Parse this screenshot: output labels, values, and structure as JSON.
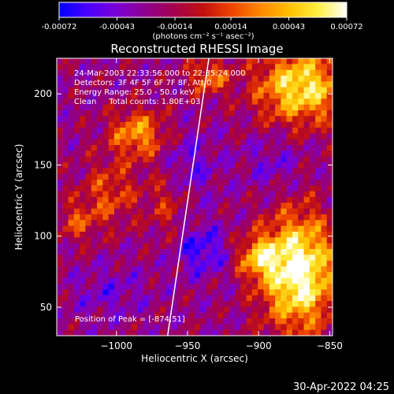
{
  "chart_data": {
    "type": "heatmap",
    "title": "Reconstructed RHESSI Image",
    "xlabel": "Heliocentric X (arcsec)",
    "ylabel": "Heliocentric Y (arcsec)",
    "xlim": [
      -1042,
      -848
    ],
    "ylim": [
      30,
      225
    ],
    "x_ticks": [
      -1000,
      -950,
      -900,
      -850
    ],
    "x_tick_labels": [
      "−1000",
      "−950",
      "−900",
      "−850"
    ],
    "y_ticks": [
      50,
      100,
      150,
      200
    ],
    "y_tick_labels": [
      "50",
      "100",
      "150",
      "200"
    ],
    "colorbar": {
      "range": [
        -0.00072,
        0.00072
      ],
      "ticks": [
        -0.00072,
        -0.00043,
        -0.00014,
        0.00014,
        0.00043,
        0.00072
      ],
      "tick_labels": [
        "-0.00072",
        "-0.00043",
        "-0.00014",
        "0.00014",
        "0.00043",
        "0.00072"
      ],
      "unit_label": "(photons cm⁻² s⁻¹ asec⁻²)",
      "colors": [
        "#0000ff",
        "#4b00ff",
        "#7a00d6",
        "#8f008f",
        "#a4004d",
        "#c21010",
        "#ee4400",
        "#ff8800",
        "#ffc000",
        "#ffef40",
        "#ffffff"
      ]
    },
    "annotations": [
      "24-Mar-2003 22:33:56.000 to 22:35:24.000",
      "Detectors: 3F 4F 5F 6F 7F 8F, Att 0",
      "Energy Range: 25.0 - 50.0 keV",
      "Clean     Total counts: 1.80E+03"
    ],
    "peak_label": "Position of Peak = [-874,51]",
    "peak": [
      -874,
      51
    ],
    "limb_line": [
      [
        -964,
        30
      ],
      [
        -935,
        225
      ]
    ],
    "sources": [
      {
        "x": -872,
        "y": 75,
        "sx": 18,
        "sy": 28,
        "amp": 2.0
      },
      {
        "x": -870,
        "y": 205,
        "sx": 22,
        "sy": 18,
        "amp": 1.6
      },
      {
        "x": -985,
        "y": 172,
        "sx": 14,
        "sy": 12,
        "amp": 1.1
      },
      {
        "x": -1005,
        "y": 130,
        "sx": 14,
        "sy": 16,
        "amp": 0.7
      },
      {
        "x": -900,
        "y": 85,
        "sx": 10,
        "sy": 10,
        "amp": 1.1
      },
      {
        "x": -1028,
        "y": 110,
        "sx": 10,
        "sy": 10,
        "amp": 0.6
      },
      {
        "x": -965,
        "y": 125,
        "sx": 10,
        "sy": 18,
        "amp": 0.5
      },
      {
        "x": -935,
        "y": 212,
        "sx": 10,
        "sy": 9,
        "amp": 0.9
      },
      {
        "x": -940,
        "y": 90,
        "sx": 12,
        "sy": 12,
        "amp": -0.7
      },
      {
        "x": -950,
        "y": 150,
        "sx": 14,
        "sy": 16,
        "amp": -0.45
      },
      {
        "x": -1005,
        "y": 60,
        "sx": 18,
        "sy": 12,
        "amp": -0.35
      },
      {
        "x": -890,
        "y": 150,
        "sx": 14,
        "sy": 14,
        "amp": -0.35
      }
    ]
  },
  "footer": {
    "date": "30-Apr-2022 04:25"
  }
}
